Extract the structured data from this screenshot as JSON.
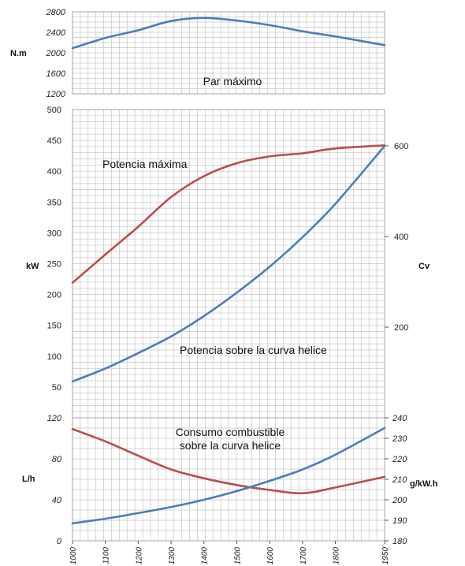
{
  "chart_data": [
    {
      "type": "line",
      "annotation": "Par máximo",
      "ylabel": "N.m",
      "ylim": [
        1200,
        2800
      ],
      "yticks": [
        1200,
        1600,
        2000,
        2400,
        2800
      ],
      "yticklabels": [
        "1200",
        "1600",
        "2000",
        "2400",
        "2800"
      ],
      "grid": true,
      "series": [
        {
          "color": "#4a7ebb",
          "points": [
            [
              1000,
              2090
            ],
            [
              1100,
              2290
            ],
            [
              1200,
              2440
            ],
            [
              1300,
              2620
            ],
            [
              1400,
              2680
            ],
            [
              1500,
              2630
            ],
            [
              1600,
              2540
            ],
            [
              1700,
              2420
            ],
            [
              1800,
              2320
            ],
            [
              1950,
              2150
            ]
          ]
        }
      ]
    },
    {
      "type": "line",
      "ylabel": "kW",
      "ylabel_right": "Cv",
      "ylim": [
        0,
        500
      ],
      "yticks": [
        50,
        100,
        150,
        200,
        250,
        300,
        350,
        400,
        450,
        500
      ],
      "yticklabels": [
        "50",
        "100",
        "150",
        "200",
        "250",
        "300",
        "350",
        "400",
        "450",
        "500"
      ],
      "ylim_right": [
        0,
        680
      ],
      "yticks_right": [
        200,
        400,
        600
      ],
      "yticklabels_right": [
        "200",
        "400",
        "600"
      ],
      "grid": true,
      "series": [
        {
          "name": "Potencia máxima",
          "color": "#be4b48",
          "points": [
            [
              1000,
              219
            ],
            [
              1100,
              265
            ],
            [
              1200,
              310
            ],
            [
              1300,
              358
            ],
            [
              1400,
              392
            ],
            [
              1500,
              413
            ],
            [
              1600,
              424
            ],
            [
              1700,
              429
            ],
            [
              1800,
              437
            ],
            [
              1950,
              442
            ]
          ]
        },
        {
          "name": "Potencia sobre la curva helice",
          "color": "#4a7ebb",
          "points": [
            [
              1000,
              59
            ],
            [
              1100,
              80
            ],
            [
              1200,
              105
            ],
            [
              1300,
              132
            ],
            [
              1400,
              165
            ],
            [
              1500,
              203
            ],
            [
              1600,
              245
            ],
            [
              1700,
              293
            ],
            [
              1800,
              347
            ],
            [
              1950,
              441
            ]
          ]
        }
      ]
    },
    {
      "type": "line",
      "annotation_lines": [
        "Consumo combustible",
        "sobre la curva helice"
      ],
      "ylabel": "L/h",
      "ylabel_right": "g/kW.h",
      "ylim": [
        0,
        120
      ],
      "yticks": [
        0,
        40,
        80,
        120
      ],
      "yticklabels": [
        "0",
        "40",
        "80",
        "120"
      ],
      "ylim_right": [
        180,
        240
      ],
      "yticks_right": [
        180,
        190,
        200,
        210,
        220,
        230,
        240
      ],
      "yticklabels_right": [
        "180",
        "190",
        "200",
        "210",
        "220",
        "230",
        "240"
      ],
      "grid": true,
      "xticks": [
        1000,
        1100,
        1200,
        1300,
        1400,
        1500,
        1600,
        1700,
        1800,
        1950
      ],
      "xticklabels": [
        "1000",
        "1100",
        "1200",
        "1300",
        "1400",
        "1500",
        "1600",
        "1700",
        "1800",
        "1950"
      ],
      "series": [
        {
          "axis": "right",
          "color": "#be4b48",
          "points": [
            [
              1000,
              234.5
            ],
            [
              1100,
              228.5
            ],
            [
              1200,
              221.5
            ],
            [
              1300,
              214.8
            ],
            [
              1400,
              210.5
            ],
            [
              1500,
              207.2
            ],
            [
              1600,
              204.8
            ],
            [
              1700,
              203.2
            ],
            [
              1800,
              206
            ],
            [
              1950,
              211.2
            ]
          ]
        },
        {
          "axis": "left",
          "color": "#4a7ebb",
          "points": [
            [
              1000,
              17
            ],
            [
              1100,
              21.5
            ],
            [
              1200,
              27
            ],
            [
              1300,
              33
            ],
            [
              1400,
              40
            ],
            [
              1500,
              48.5
            ],
            [
              1600,
              58.5
            ],
            [
              1700,
              69.5
            ],
            [
              1800,
              84
            ],
            [
              1950,
              110
            ]
          ]
        }
      ]
    }
  ],
  "colors": {
    "right_axis_bottom": "#e03030",
    "grid": "#c6c6c6",
    "frame": "#a6a6a6"
  }
}
